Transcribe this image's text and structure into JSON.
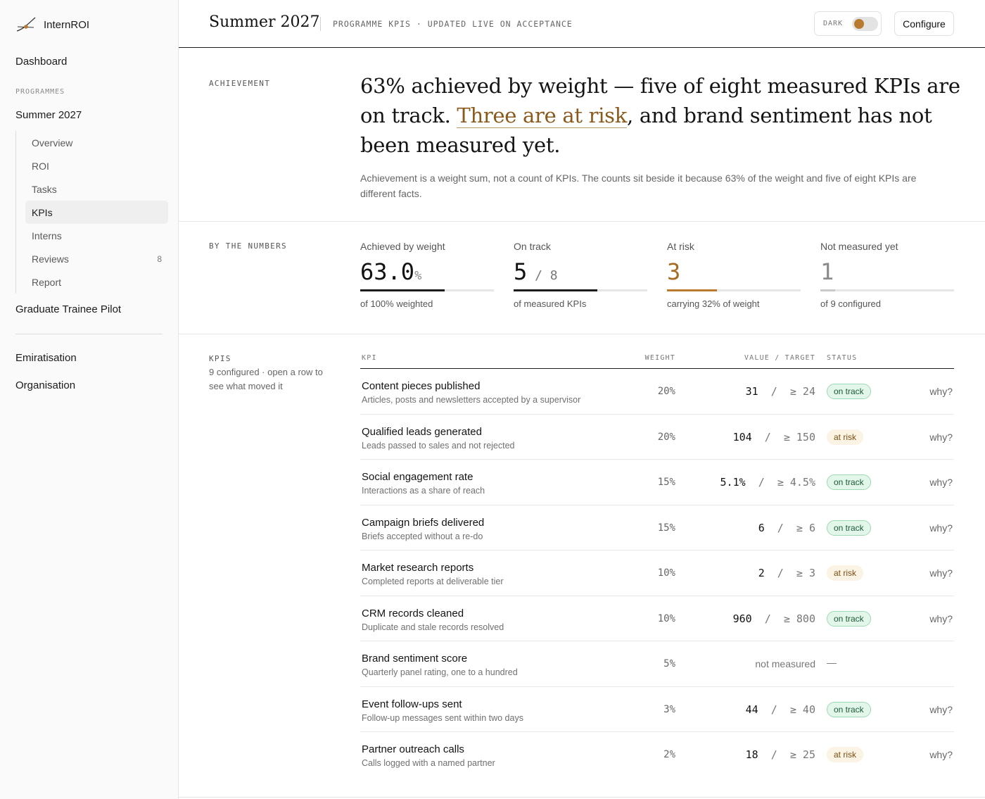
{
  "brand": "InternROI",
  "nav": {
    "dashboard": "Dashboard",
    "programmes_label": "PROGRAMMES",
    "summer": "Summer 2027",
    "subitems": [
      {
        "label": "Overview",
        "count": ""
      },
      {
        "label": "ROI",
        "count": ""
      },
      {
        "label": "Tasks",
        "count": ""
      },
      {
        "label": "KPIs",
        "count": ""
      },
      {
        "label": "Interns",
        "count": ""
      },
      {
        "label": "Reviews",
        "count": "8"
      },
      {
        "label": "Report",
        "count": ""
      }
    ],
    "graduate": "Graduate Trainee Pilot",
    "emiratisation": "Emiratisation",
    "organisation": "Organisation"
  },
  "header": {
    "title": "Summer 2027",
    "meta": "PROGRAMME KPIS · UPDATED LIVE ON ACCEPTANCE",
    "dark_label": "DARK",
    "configure": "Configure"
  },
  "achievement": {
    "label": "ACHIEVEMENT",
    "headline_a": "63% achieved by weight — five of eight measured KPIs are on track. ",
    "headline_risk": "Three are at risk",
    "headline_b": ", and brand sentiment has not been measured yet.",
    "explain": "Achievement is a weight sum, not a count of KPIs. The counts sit beside it because 63% of the weight and five of eight KPIs are different facts."
  },
  "numbers": {
    "label": "BY THE NUMBERS",
    "stats": [
      {
        "label": "Achieved by weight",
        "value": "63.0",
        "suffix": "%",
        "denominator": "",
        "note": "of 100% weighted",
        "fill": 0.63,
        "color": "#1b1b1b",
        "value_color": "#111111"
      },
      {
        "label": "On track",
        "value": "5",
        "suffix": "",
        "denominator": " / 8",
        "note": "of measured KPIs",
        "fill": 0.625,
        "color": "#1b1b1b",
        "value_color": "#111111"
      },
      {
        "label": "At risk",
        "value": "3",
        "suffix": "",
        "denominator": "",
        "note": "carrying 32% of weight",
        "fill": 0.375,
        "color": "#b87a2e",
        "value_color": "#a66a22"
      },
      {
        "label": "Not measured yet",
        "value": "1",
        "suffix": "",
        "denominator": "",
        "note": "of 9 configured",
        "fill": 0.11,
        "color": "#c9c9c9",
        "value_color": "#8a8a8a"
      }
    ]
  },
  "kpis": {
    "label": "KPIS",
    "sub": "9 configured · open a row to see what moved it",
    "columns": {
      "kpi": "KPI",
      "weight": "WEIGHT",
      "value_target": "VALUE / TARGET",
      "status": "STATUS"
    },
    "rows": [
      {
        "name": "Content pieces published",
        "desc": "Articles, posts and newsletters accepted by a supervisor",
        "weight": "20%",
        "value": "31",
        "target": "≥ 24",
        "status": "on track",
        "kind": "ok",
        "why": "why?"
      },
      {
        "name": "Qualified leads generated",
        "desc": "Leads passed to sales and not rejected",
        "weight": "20%",
        "value": "104",
        "target": "≥ 150",
        "status": "at risk",
        "kind": "risk",
        "why": "why?"
      },
      {
        "name": "Social engagement rate",
        "desc": "Interactions as a share of reach",
        "weight": "15%",
        "value": "5.1%",
        "target": "≥ 4.5%",
        "status": "on track",
        "kind": "ok",
        "why": "why?"
      },
      {
        "name": "Campaign briefs delivered",
        "desc": "Briefs accepted without a re-do",
        "weight": "15%",
        "value": "6",
        "target": "≥ 6",
        "status": "on track",
        "kind": "ok",
        "why": "why?"
      },
      {
        "name": "Market research reports",
        "desc": "Completed reports at deliverable tier",
        "weight": "10%",
        "value": "2",
        "target": "≥ 3",
        "status": "at risk",
        "kind": "risk",
        "why": "why?"
      },
      {
        "name": "CRM records cleaned",
        "desc": "Duplicate and stale records resolved",
        "weight": "10%",
        "value": "960",
        "target": "≥ 800",
        "status": "on track",
        "kind": "ok",
        "why": "why?"
      },
      {
        "name": "Brand sentiment score",
        "desc": "Quarterly panel rating, one to a hundred",
        "weight": "5%",
        "value": "not measured",
        "target": "",
        "status": "—",
        "kind": "none",
        "why": ""
      },
      {
        "name": "Event follow-ups sent",
        "desc": "Follow-up messages sent within two days",
        "weight": "3%",
        "value": "44",
        "target": "≥ 40",
        "status": "on track",
        "kind": "ok",
        "why": "why?"
      },
      {
        "name": "Partner outreach calls",
        "desc": "Calls logged with a named partner",
        "weight": "2%",
        "value": "18",
        "target": "≥ 25",
        "status": "at risk",
        "kind": "risk",
        "why": "why?"
      }
    ]
  }
}
